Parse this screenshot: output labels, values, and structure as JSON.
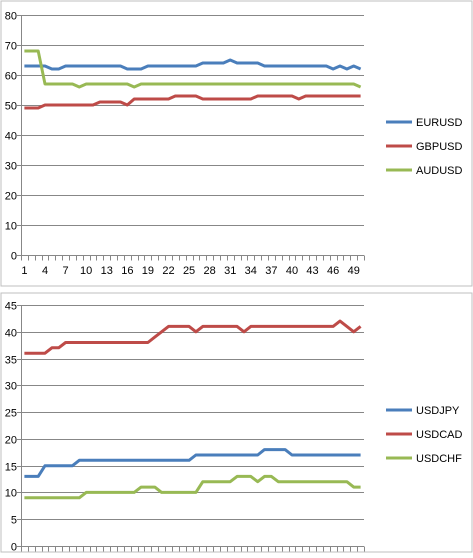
{
  "chart_data": [
    {
      "type": "line",
      "ylim": [
        0,
        80
      ],
      "yticks": [
        "0",
        "10",
        "20",
        "30",
        "40",
        "50",
        "60",
        "70",
        "80"
      ],
      "x": [
        1,
        2,
        3,
        4,
        5,
        6,
        7,
        8,
        9,
        10,
        11,
        12,
        13,
        14,
        15,
        16,
        17,
        18,
        19,
        20,
        21,
        22,
        23,
        24,
        25,
        26,
        27,
        28,
        29,
        30,
        31,
        32,
        33,
        34,
        35,
        36,
        37,
        38,
        39,
        40,
        41,
        42,
        43,
        44,
        45,
        46,
        47,
        48,
        49,
        50
      ],
      "xticks": [
        "1",
        "4",
        "7",
        "10",
        "13",
        "16",
        "19",
        "22",
        "25",
        "28",
        "31",
        "34",
        "37",
        "40",
        "43",
        "46",
        "49"
      ],
      "grid": true,
      "legend": "right",
      "series": [
        {
          "name": "EURUSD",
          "color": "#4a7ebb",
          "values": [
            63,
            63,
            63,
            63,
            62,
            62,
            63,
            63,
            63,
            63,
            63,
            63,
            63,
            63,
            63,
            62,
            62,
            62,
            63,
            63,
            63,
            63,
            63,
            63,
            63,
            63,
            64,
            64,
            64,
            64,
            65,
            64,
            64,
            64,
            64,
            63,
            63,
            63,
            63,
            63,
            63,
            63,
            63,
            63,
            63,
            62,
            63,
            62,
            63,
            62
          ]
        },
        {
          "name": "GBPUSD",
          "color": "#be4b48",
          "values": [
            49,
            49,
            49,
            50,
            50,
            50,
            50,
            50,
            50,
            50,
            50,
            51,
            51,
            51,
            51,
            50,
            52,
            52,
            52,
            52,
            52,
            52,
            53,
            53,
            53,
            53,
            52,
            52,
            52,
            52,
            52,
            52,
            52,
            52,
            53,
            53,
            53,
            53,
            53,
            53,
            52,
            53,
            53,
            53,
            53,
            53,
            53,
            53,
            53,
            53
          ]
        },
        {
          "name": "AUDUSD",
          "color": "#98b954",
          "values": [
            68,
            68,
            68,
            57,
            57,
            57,
            57,
            57,
            56,
            57,
            57,
            57,
            57,
            57,
            57,
            57,
            56,
            57,
            57,
            57,
            57,
            57,
            57,
            57,
            57,
            57,
            57,
            57,
            57,
            57,
            57,
            57,
            57,
            57,
            57,
            57,
            57,
            57,
            57,
            57,
            57,
            57,
            57,
            57,
            57,
            57,
            57,
            57,
            57,
            56
          ]
        }
      ]
    },
    {
      "type": "line",
      "ylim": [
        0,
        45
      ],
      "yticks": [
        "0",
        "5",
        "10",
        "15",
        "20",
        "25",
        "30",
        "35",
        "40",
        "45"
      ],
      "x": [
        1,
        2,
        3,
        4,
        5,
        6,
        7,
        8,
        9,
        10,
        11,
        12,
        13,
        14,
        15,
        16,
        17,
        18,
        19,
        20,
        21,
        22,
        23,
        24,
        25,
        26,
        27,
        28,
        29,
        30,
        31,
        32,
        33,
        34,
        35,
        36,
        37,
        38,
        39,
        40,
        41,
        42,
        43,
        44,
        45,
        46,
        47,
        48,
        49,
        50
      ],
      "grid": true,
      "legend": "right",
      "series": [
        {
          "name": "USDJPY",
          "color": "#4a7ebb",
          "values": [
            13,
            13,
            13,
            15,
            15,
            15,
            15,
            15,
            16,
            16,
            16,
            16,
            16,
            16,
            16,
            16,
            16,
            16,
            16,
            16,
            16,
            16,
            16,
            16,
            16,
            17,
            17,
            17,
            17,
            17,
            17,
            17,
            17,
            17,
            17,
            18,
            18,
            18,
            18,
            17,
            17,
            17,
            17,
            17,
            17,
            17,
            17,
            17,
            17,
            17
          ]
        },
        {
          "name": "USDCAD",
          "color": "#be4b48",
          "values": [
            36,
            36,
            36,
            36,
            37,
            37,
            38,
            38,
            38,
            38,
            38,
            38,
            38,
            38,
            38,
            38,
            38,
            38,
            38,
            39,
            40,
            41,
            41,
            41,
            41,
            40,
            41,
            41,
            41,
            41,
            41,
            41,
            40,
            41,
            41,
            41,
            41,
            41,
            41,
            41,
            41,
            41,
            41,
            41,
            41,
            41,
            42,
            41,
            40,
            41
          ]
        },
        {
          "name": "USDCHF",
          "color": "#98b954",
          "values": [
            9,
            9,
            9,
            9,
            9,
            9,
            9,
            9,
            9,
            10,
            10,
            10,
            10,
            10,
            10,
            10,
            10,
            11,
            11,
            11,
            10,
            10,
            10,
            10,
            10,
            10,
            12,
            12,
            12,
            12,
            12,
            13,
            13,
            13,
            12,
            13,
            13,
            12,
            12,
            12,
            12,
            12,
            12,
            12,
            12,
            12,
            12,
            12,
            11,
            11
          ]
        }
      ]
    }
  ]
}
